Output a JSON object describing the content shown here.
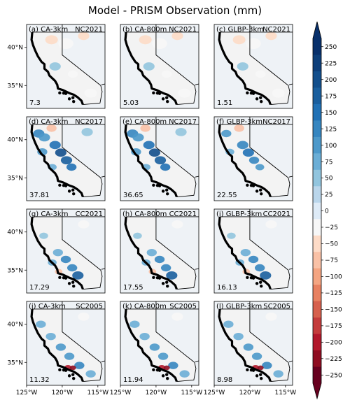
{
  "figure": {
    "title": "Model - PRISM Observation (mm)"
  },
  "chart_data": [
    {
      "type": "heatmap",
      "panel": "(a)",
      "model": "CA-3km",
      "event": "NC2021",
      "value": "7.3",
      "bias": "weak"
    },
    {
      "type": "heatmap",
      "panel": "(b)",
      "model": "CA-800m",
      "event": "NC2021",
      "value": "5.03",
      "bias": "weak"
    },
    {
      "type": "heatmap",
      "panel": "(c)",
      "model": "GLBP-3km",
      "event": "NC2021",
      "value": "1.51",
      "bias": "weak"
    },
    {
      "type": "heatmap",
      "panel": "(d)",
      "model": "CA-3km",
      "event": "NC2017",
      "value": "37.81",
      "bias": "strong-positive-sierra"
    },
    {
      "type": "heatmap",
      "panel": "(e)",
      "model": "CA-800m",
      "event": "NC2017",
      "value": "36.65",
      "bias": "strong-positive-sierra"
    },
    {
      "type": "heatmap",
      "panel": "(f)",
      "model": "GLBP-3km",
      "event": "NC2017",
      "value": "22.55",
      "bias": "moderate-positive-sierra"
    },
    {
      "type": "heatmap",
      "panel": "(g)",
      "model": "CA-3km",
      "event": "CC2021",
      "value": "17.29",
      "bias": "positive-central"
    },
    {
      "type": "heatmap",
      "panel": "(h)",
      "model": "CA-800m",
      "event": "CC2021",
      "value": "17.55",
      "bias": "positive-central"
    },
    {
      "type": "heatmap",
      "panel": "(i)",
      "model": "GLBP-3km",
      "event": "CC2021",
      "value": "16.13",
      "bias": "positive-central"
    },
    {
      "type": "heatmap",
      "panel": "(j)",
      "model": "CA-3km",
      "event": "SC2005",
      "value": "11.32",
      "bias": "positive-south-with-red-spot"
    },
    {
      "type": "heatmap",
      "panel": "(k)",
      "model": "CA-800m",
      "event": "SC2005",
      "value": "11.94",
      "bias": "positive-south-with-red-spot"
    },
    {
      "type": "heatmap",
      "panel": "(l)",
      "model": "GLBP-3km",
      "event": "SC2005",
      "value": "8.98",
      "bias": "positive-south-with-red-spot"
    }
  ],
  "axes": {
    "y_ticks": [
      "40°N",
      "35°N"
    ],
    "x_ticks": [
      "125°W",
      "120°W",
      "115°W"
    ],
    "lon_range": [
      -125,
      -114
    ],
    "lat_range": [
      32,
      43
    ]
  },
  "colorbar": {
    "ticks": [
      "250",
      "225",
      "200",
      "175",
      "150",
      "125",
      "100",
      "75",
      "50",
      "25",
      "0",
      "−25",
      "−50",
      "−75",
      "−100",
      "−125",
      "−150",
      "−175",
      "−200",
      "−225",
      "−250"
    ],
    "colors": [
      "#08306b",
      "#0d3f7a",
      "#134f8c",
      "#1a5f9e",
      "#2171b5",
      "#3686c0",
      "#4d99ca",
      "#6baed6",
      "#92c5de",
      "#bad6eb",
      "#deebf7",
      "#f7f7f7",
      "#fddbc7",
      "#f9c1a6",
      "#f4a582",
      "#e88161",
      "#d6604d",
      "#c43c3c",
      "#b2182b",
      "#8e0d21",
      "#67001f"
    ],
    "extend": "both"
  }
}
